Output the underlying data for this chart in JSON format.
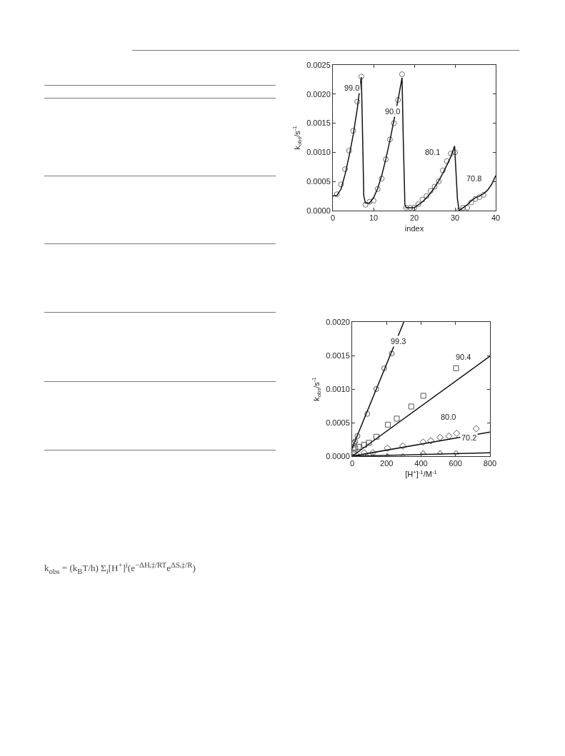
{
  "chart_data": [
    {
      "type": "scatter",
      "xlabel": "index",
      "ylabel": "k$_{obs}$/s$^{-1}$",
      "xlim": [
        0,
        40
      ],
      "xticks": [
        0,
        10,
        20,
        30,
        40
      ],
      "ylim": [
        0,
        0.0025
      ],
      "yticks": [
        {
          "value": 0,
          "label": "0.0000"
        },
        {
          "value": 0.0005,
          "label": "0.0005"
        },
        {
          "value": 0.001,
          "label": "0.0010"
        },
        {
          "value": 0.0015,
          "label": "0.0015"
        },
        {
          "value": 0.002,
          "label": "0.0020"
        },
        {
          "value": 0.0025,
          "label": "0.0025"
        }
      ],
      "grid": false,
      "series": [
        {
          "marker": "circle",
          "color": "#707070",
          "x": [
            1,
            2,
            3,
            4,
            5,
            6,
            7,
            8,
            9,
            10,
            11,
            12,
            13,
            14,
            15,
            16,
            17,
            18,
            19,
            20,
            21,
            22,
            23,
            24,
            25,
            26,
            27,
            28,
            29,
            30,
            31,
            32,
            33,
            34,
            35,
            36,
            37
          ],
          "values": [
            0.00028,
            0.00045,
            0.00071,
            0.00103,
            0.00137,
            0.00187,
            0.0023,
            0.0001,
            0.00015,
            0.00017,
            0.00037,
            0.00055,
            0.00088,
            0.00122,
            0.0015,
            0.0019,
            0.00234,
            5e-05,
            5e-05,
            5e-05,
            0.00011,
            0.00019,
            0.00025,
            0.00034,
            0.00041,
            0.0005,
            0.00069,
            0.00085,
            0.00098,
            0.001,
            0,
            5e-05,
            5e-05,
            0.00014,
            0.0002,
            0.00023,
            0.00027
          ]
        },
        {
          "type": "line",
          "marker": "none",
          "line_style": "solid",
          "color": "#111111",
          "x": [
            0,
            1,
            2,
            3,
            4,
            5,
            6,
            6.8,
            7,
            7.3,
            7.6,
            8,
            9,
            10,
            11,
            12,
            13,
            14,
            15,
            16,
            17,
            17.3,
            17.7,
            18,
            20,
            21,
            22,
            23,
            24,
            25,
            26,
            27,
            28,
            29,
            29.9,
            30.6,
            31,
            32,
            33,
            34,
            35,
            36,
            37,
            38,
            39,
            40
          ],
          "values": [
            0.00025,
            0.00026,
            0.00037,
            0.00062,
            0.00094,
            0.0013,
            0.00175,
            0.0022,
            0.00229,
            0.0013,
            0.00025,
            0.00013,
            0.00013,
            0.00022,
            0.00038,
            0.0006,
            0.00088,
            0.0012,
            0.00155,
            0.0019,
            0.00228,
            0.0012,
            0.0001,
            5e-05,
            5e-05,
            0.0001,
            0.00015,
            0.00022,
            0.0003,
            0.0004,
            0.00051,
            0.00064,
            0.00078,
            0.00093,
            0.00111,
            0.0002,
            0,
            5e-05,
            0.0001,
            0.00017,
            0.00022,
            0.00025,
            0.00029,
            0.00035,
            0.00045,
            0.0006
          ]
        }
      ],
      "annotations": [
        "99.0",
        "90.0",
        "80.1",
        "70.8"
      ]
    },
    {
      "type": "scatter",
      "xlabel": "[H$^{+}$]$^{-1}$/M$^{-1}$",
      "ylabel": "k$_{obs}$/s$^{-1}$",
      "xlim": [
        0,
        800
      ],
      "xticks": [
        0,
        200,
        400,
        600,
        800
      ],
      "ylim": [
        0,
        0.002
      ],
      "yticks": [
        {
          "value": 0,
          "label": "0.0000"
        },
        {
          "value": 0.0005,
          "label": "0.0005"
        },
        {
          "value": 0.001,
          "label": "0.0010"
        },
        {
          "value": 0.0015,
          "label": "0.0015"
        },
        {
          "value": 0.002,
          "label": "0.0020"
        }
      ],
      "grid": false,
      "series": [
        {
          "marker": "circle",
          "color": "#555555",
          "x": [
            11,
            18,
            31,
            88,
            140,
            186,
            230
          ],
          "values": [
            0.0002,
            0.00022,
            0.0003,
            0.00063,
            0.001,
            0.00131,
            0.00153
          ]
        },
        {
          "marker": "square",
          "color": "#555555",
          "x": [
            7,
            18,
            38,
            70,
            97,
            141,
            207,
            259,
            343,
            413,
            603
          ],
          "values": [
            0.0001,
            0.00012,
            0.00014,
            0.00017,
            0.0002,
            0.00029,
            0.00047,
            0.00056,
            0.00074,
            0.0009,
            0.00131
          ]
        },
        {
          "marker": "diamond",
          "color": "#555555",
          "x": [
            11,
            70,
            120,
            205,
            294,
            412,
            456,
            510,
            561,
            606,
            720
          ],
          "values": [
            5e-05,
            5e-05,
            5e-05,
            0.00012,
            0.00015,
            0.00021,
            0.00023,
            0.00028,
            0.0003,
            0.00034,
            0.00041
          ]
        },
        {
          "marker": "triangle",
          "color": "#555555",
          "x": [
            4,
            38,
            86,
            120,
            207,
            294,
            412,
            510,
            603
          ],
          "values": [
            0,
            0,
            0,
            0,
            0,
            0,
            5e-05,
            5e-05,
            5e-05
          ]
        },
        {
          "type": "line",
          "marker": "none",
          "line_style": "solid",
          "color": "#111111",
          "x": [
            0,
            300
          ],
          "values": [
            0.00012,
            0.002
          ]
        },
        {
          "type": "line",
          "marker": "none",
          "line_style": "solid",
          "color": "#111111",
          "x": [
            0,
            800
          ],
          "values": [
            0,
            0.00149
          ]
        },
        {
          "type": "line",
          "marker": "none",
          "line_style": "solid",
          "color": "#111111",
          "x": [
            0,
            800
          ],
          "values": [
            0,
            0.00036
          ]
        },
        {
          "type": "line",
          "marker": "none",
          "line_style": "solid",
          "color": "#111111",
          "x": [
            0,
            800
          ],
          "values": [
            0,
            5e-05
          ]
        }
      ],
      "annotations": [
        "99.3",
        "90.4",
        "80.0",
        "70.2",
        "k$_{obs}$ = (k$_{B}$T/h) Σ$_{i}$[H$^{+}$]$^{i}$(e$^{−ΔHᵢ‡/RT}$e$^{ΔSᵢ‡/R}$)"
      ]
    }
  ]
}
